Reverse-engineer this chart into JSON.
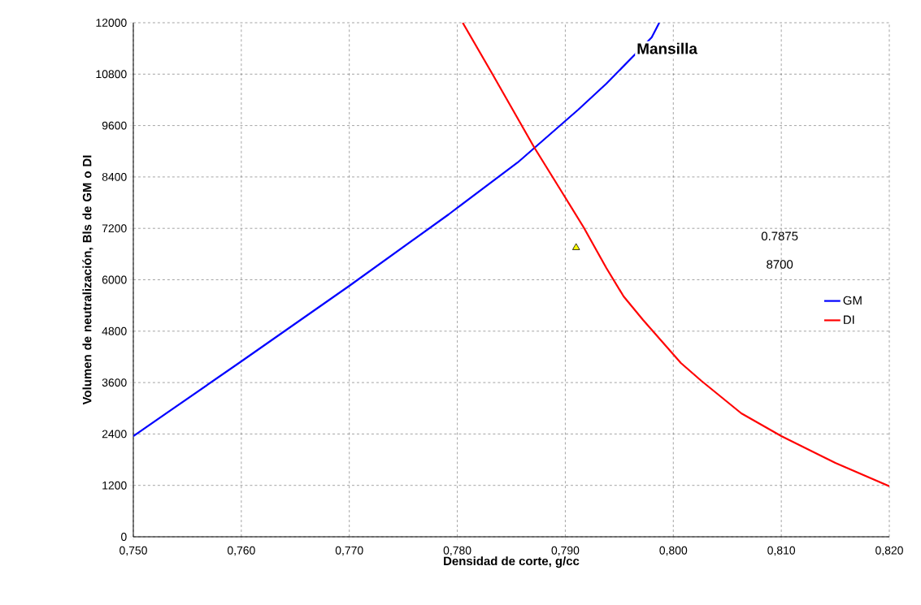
{
  "chart_data": {
    "type": "line",
    "title": "Mansilla",
    "xlabel": "Densidad de corte, g/cc",
    "ylabel": "Volumen de neutralización, Bls de GM o DI",
    "annotations": [
      "0.7875",
      "8700"
    ],
    "series": [
      {
        "name": "GM",
        "color": "#0000ff",
        "x": [
          0.75,
          0.76,
          0.77,
          0.7792,
          0.78,
          0.7856,
          0.7912,
          0.7938,
          0.798,
          0.7987
        ],
        "values": [
          2350,
          4095,
          5858,
          7526,
          7678,
          8740,
          9972,
          10578,
          11659,
          12000
        ]
      },
      {
        "name": "DI",
        "color": "#ff0000",
        "x": [
          0.7805,
          0.7832,
          0.7871,
          0.7898,
          0.7917,
          0.7938,
          0.7954,
          0.7972,
          0.8007,
          0.8026,
          0.8063,
          0.81,
          0.815,
          0.819,
          0.82
        ],
        "values": [
          12000,
          10825,
          9100,
          8000,
          7223,
          6275,
          5611,
          5062,
          4057,
          3640,
          2881,
          2351,
          1725,
          1289,
          1180
        ]
      },
      {
        "type": "scatter",
        "color": "#ffff00",
        "marker": "triangle",
        "x": [
          0.791
        ],
        "values": [
          6750
        ]
      }
    ],
    "xlim": [
      0.75,
      0.82
    ],
    "xticks": [
      {
        "value": 0.75,
        "label": "0,750"
      },
      {
        "value": 0.76,
        "label": "0,760"
      },
      {
        "value": 0.77,
        "label": "0,770"
      },
      {
        "value": 0.78,
        "label": "0,780"
      },
      {
        "value": 0.79,
        "label": "0,790"
      },
      {
        "value": 0.8,
        "label": "0,800"
      },
      {
        "value": 0.81,
        "label": "0,810"
      },
      {
        "value": 0.82,
        "label": "0,820"
      }
    ],
    "ylim": [
      0,
      12000
    ],
    "yticks": [
      0,
      1200,
      2400,
      3600,
      4800,
      6000,
      7200,
      8400,
      9600,
      10800,
      12000
    ],
    "grid": true,
    "legend": "right",
    "marker": "none",
    "line_style": "solid"
  }
}
